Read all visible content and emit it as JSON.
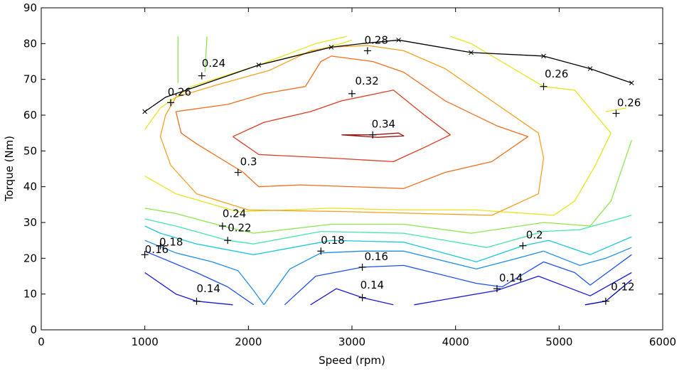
{
  "chart_data": {
    "type": "contour",
    "xlabel": "Speed (rpm)",
    "ylabel": "Torque (Nm)",
    "xlim": [
      0,
      6000
    ],
    "ylim": [
      0,
      90
    ],
    "xticks": [
      "0",
      "1000",
      "2000",
      "3000",
      "4000",
      "5000",
      "6000"
    ],
    "yticks": [
      "0",
      "10",
      "20",
      "30",
      "40",
      "50",
      "60",
      "70",
      "80",
      "90"
    ],
    "grid": false,
    "levels": [
      {
        "level": "0.12",
        "color": "#0000c8",
        "paths": [
          [
            [
              5250,
              7
            ],
            [
              5450,
              8
            ],
            [
              5700,
              14
            ]
          ]
        ]
      },
      {
        "level": "0.14",
        "color": "#1a1ad8",
        "paths": [
          [
            [
              1000,
              16
            ],
            [
              1300,
              10
            ],
            [
              1500,
              8
            ],
            [
              1850,
              7
            ]
          ],
          [
            [
              2600,
              7
            ],
            [
              2850,
              11.5
            ],
            [
              3100,
              9
            ],
            [
              3400,
              7
            ]
          ],
          [
            [
              3600,
              7
            ],
            [
              4400,
              11
            ],
            [
              4800,
              15
            ],
            [
              5300,
              9.5
            ],
            [
              5700,
              16
            ]
          ]
        ]
      },
      {
        "level": "0.16",
        "color": "#1f50ee",
        "paths": [
          [
            [
              1000,
              22
            ],
            [
              1250,
              19
            ],
            [
              1500,
              16
            ],
            [
              1800,
              12
            ],
            [
              2050,
              7
            ]
          ],
          [
            [
              2350,
              7
            ],
            [
              2650,
              15
            ],
            [
              3100,
              17.5
            ],
            [
              3500,
              18
            ],
            [
              4200,
              13
            ],
            [
              4450,
              12
            ],
            [
              4850,
              19
            ],
            [
              5150,
              16
            ],
            [
              5300,
              12.5
            ],
            [
              5700,
              21
            ]
          ]
        ]
      },
      {
        "level": "0.18",
        "color": "#1e8ee6",
        "paths": [
          [
            [
              1000,
              25
            ],
            [
              1300,
              21.5
            ],
            [
              1650,
              19
            ],
            [
              1900,
              16.5
            ],
            [
              2050,
              11
            ],
            [
              2150,
              7
            ]
          ],
          [
            [
              2150,
              7
            ],
            [
              2250,
              11
            ],
            [
              2400,
              17
            ],
            [
              2700,
              21.5
            ],
            [
              3100,
              22
            ],
            [
              3500,
              22
            ],
            [
              4200,
              17
            ],
            [
              4600,
              20
            ],
            [
              4850,
              22
            ],
            [
              5200,
              18
            ],
            [
              5450,
              20
            ],
            [
              5700,
              23
            ]
          ]
        ]
      },
      {
        "level": "0.2",
        "color": "#1ec8dc",
        "paths": [
          [
            [
              1000,
              29
            ],
            [
              1150,
              27
            ],
            [
              1500,
              24
            ],
            [
              2050,
              21
            ],
            [
              2800,
              25
            ],
            [
              3500,
              24.5
            ],
            [
              4200,
              19
            ],
            [
              4650,
              23.5
            ],
            [
              4900,
              25
            ],
            [
              5300,
              21
            ],
            [
              5700,
              26
            ]
          ]
        ]
      },
      {
        "level": "0.22",
        "color": "#46e6a8",
        "paths": [
          [
            [
              1000,
              31
            ],
            [
              1300,
              29
            ],
            [
              1800,
              25
            ],
            [
              2050,
              24
            ],
            [
              2700,
              27.5
            ],
            [
              3500,
              27
            ],
            [
              4300,
              23
            ],
            [
              4850,
              27.5
            ],
            [
              5200,
              28
            ],
            [
              5700,
              32
            ]
          ]
        ]
      },
      {
        "level": "0.24",
        "color": "#8ce650",
        "paths": [
          [
            [
              1000,
              34
            ],
            [
              1300,
              32.5
            ],
            [
              1750,
              29
            ],
            [
              2050,
              27
            ],
            [
              2800,
              29.5
            ],
            [
              3500,
              29.5
            ],
            [
              4150,
              27
            ],
            [
              4850,
              30
            ],
            [
              5300,
              29
            ],
            [
              5500,
              36
            ],
            [
              5700,
              53
            ]
          ],
          [
            [
              1320,
              69
            ],
            [
              1320,
              82
            ]
          ],
          [
            [
              1580,
              72
            ],
            [
              1600,
              82
            ]
          ]
        ]
      },
      {
        "level": "0.26",
        "color": "#e6e61e",
        "paths": [
          [
            [
              1000,
              43
            ],
            [
              1300,
              38
            ],
            [
              1900,
              33
            ],
            [
              2800,
              34
            ],
            [
              3500,
              33.5
            ],
            [
              4200,
              33.5
            ],
            [
              4950,
              32
            ],
            [
              5150,
              36
            ],
            [
              5350,
              46
            ],
            [
              5500,
              55
            ],
            [
              5150,
              67
            ],
            [
              4850,
              68
            ],
            [
              4500,
              74
            ],
            [
              4150,
              80
            ],
            [
              3950,
              82
            ]
          ],
          [
            [
              1000,
              56
            ],
            [
              1150,
              62
            ],
            [
              1450,
              68
            ],
            [
              2100,
              74
            ],
            [
              2700,
              78.5
            ],
            [
              2900,
              80
            ],
            [
              3000,
              81
            ]
          ],
          [
            [
              2100,
              74
            ],
            [
              2650,
              80
            ],
            [
              2950,
              82
            ]
          ],
          [
            [
              5450,
              61
            ],
            [
              5650,
              62
            ]
          ]
        ]
      },
      {
        "level": "0.28",
        "color": "#f5a01e",
        "paths": [
          [
            [
              2600,
              78
            ],
            [
              2200,
              72.5
            ],
            [
              1700,
              68.5
            ],
            [
              1300,
              65
            ],
            [
              1200,
              60
            ],
            [
              1150,
              54
            ],
            [
              1250,
              46
            ],
            [
              1500,
              38
            ],
            [
              2000,
              33.5
            ],
            [
              3000,
              33
            ],
            [
              4350,
              32
            ],
            [
              4800,
              38
            ],
            [
              4850,
              48
            ],
            [
              4800,
              55
            ],
            [
              4350,
              64
            ],
            [
              3900,
              73
            ],
            [
              3500,
              78
            ],
            [
              3150,
              79.5
            ],
            [
              2800,
              79
            ],
            [
              2600,
              78
            ]
          ]
        ]
      },
      {
        "level": "0.3",
        "color": "#f06e1e",
        "paths": [
          [
            [
              1350,
              55
            ],
            [
              1300,
              61
            ],
            [
              1800,
              63
            ],
            [
              2150,
              66
            ],
            [
              2550,
              68
            ],
            [
              2700,
              75
            ],
            [
              2800,
              76.5
            ],
            [
              3200,
              75
            ],
            [
              3500,
              72
            ],
            [
              3900,
              64
            ],
            [
              4400,
              57
            ],
            [
              4700,
              54
            ],
            [
              4350,
              47
            ],
            [
              3900,
              44
            ],
            [
              3500,
              39.5
            ],
            [
              2500,
              40.5
            ],
            [
              2100,
              40
            ],
            [
              1950,
              44
            ],
            [
              1500,
              52
            ],
            [
              1350,
              55
            ]
          ]
        ]
      },
      {
        "level": "0.32",
        "color": "#dc3c1e",
        "paths": [
          [
            [
              1850,
              54
            ],
            [
              2150,
              58
            ],
            [
              2600,
              61
            ],
            [
              2900,
              64
            ],
            [
              3400,
              67
            ],
            [
              3700,
              60
            ],
            [
              3950,
              54.5
            ],
            [
              3700,
              51
            ],
            [
              3400,
              47
            ],
            [
              2800,
              48
            ],
            [
              2100,
              49
            ],
            [
              1850,
              54
            ]
          ]
        ]
      },
      {
        "level": "0.34",
        "color": "#a01414",
        "paths": [
          [
            [
              2900,
              54.5
            ],
            [
              3200,
              54.5
            ],
            [
              3450,
              55
            ],
            [
              3500,
              54.2
            ],
            [
              3250,
              53.8
            ],
            [
              2900,
              54.5
            ]
          ]
        ]
      },
      {
        "level": "",
        "color": "#000000",
        "paths": [
          [
            [
              1000,
              61
            ],
            [
              1200,
              65
            ],
            [
              1450,
              67.5
            ],
            [
              2100,
              74
            ],
            [
              2800,
              79
            ],
            [
              3100,
              80
            ],
            [
              3450,
              81
            ],
            [
              4150,
              77.5
            ],
            [
              4850,
              76.5
            ],
            [
              5300,
              73
            ],
            [
              5700,
              69
            ]
          ]
        ]
      }
    ],
    "boundary_markers": [
      [
        1000,
        61
      ],
      [
        2100,
        74
      ],
      [
        2800,
        79
      ],
      [
        3450,
        81
      ],
      [
        4150,
        77.5
      ],
      [
        4850,
        76.5
      ],
      [
        5300,
        73
      ],
      [
        5700,
        69
      ]
    ],
    "contour_labels": [
      {
        "text": "0.12",
        "anchor": [
          5450,
          8
        ],
        "at": [
          5500,
          11
        ]
      },
      {
        "text": "0.14",
        "anchor": [
          1500,
          8
        ],
        "at": [
          1500,
          10.5
        ]
      },
      {
        "text": "0.14",
        "anchor": [
          3100,
          9
        ],
        "at": [
          3080,
          11.5
        ]
      },
      {
        "text": "0.14",
        "anchor": [
          4400,
          11.5
        ],
        "at": [
          4420,
          13.5
        ]
      },
      {
        "text": "0.16",
        "anchor": [
          3100,
          17.5
        ],
        "at": [
          3120,
          19.5
        ]
      },
      {
        "text": "0.16",
        "anchor": [
          1150,
          23.5
        ],
        "at": [
          1000,
          21.5
        ]
      },
      {
        "text": "0.18",
        "anchor": [
          2700,
          22
        ],
        "at": [
          2700,
          24
        ]
      },
      {
        "text": "0.18",
        "anchor": [
          1000,
          21
        ],
        "at": [
          1140,
          23.5
        ]
      },
      {
        "text": "0.2",
        "anchor": [
          4650,
          23.5
        ],
        "at": [
          4680,
          25.5
        ]
      },
      {
        "text": "0.22",
        "anchor": [
          1800,
          25
        ],
        "at": [
          1800,
          27.5
        ]
      },
      {
        "text": "0.24",
        "anchor": [
          1750,
          29
        ],
        "at": [
          1750,
          31.5
        ]
      },
      {
        "text": "0.24",
        "anchor": [
          1550,
          71
        ],
        "at": [
          1550,
          73.5
        ]
      },
      {
        "text": "0.26",
        "anchor": [
          1250,
          63.5
        ],
        "at": [
          1220,
          65.5
        ]
      },
      {
        "text": "0.26",
        "anchor": [
          4850,
          68
        ],
        "at": [
          4860,
          70.5
        ]
      },
      {
        "text": "0.26",
        "anchor": [
          5550,
          60.5
        ],
        "at": [
          5560,
          62.5
        ]
      },
      {
        "text": "0.28",
        "anchor": [
          3150,
          78
        ],
        "at": [
          3120,
          80
        ]
      },
      {
        "text": "0.3",
        "anchor": [
          1900,
          44
        ],
        "at": [
          1920,
          46
        ]
      },
      {
        "text": "0.32",
        "anchor": [
          3000,
          66
        ],
        "at": [
          3030,
          68.5
        ]
      },
      {
        "text": "0.34",
        "anchor": [
          3200,
          54.5
        ],
        "at": [
          3190,
          56.5
        ]
      }
    ]
  }
}
